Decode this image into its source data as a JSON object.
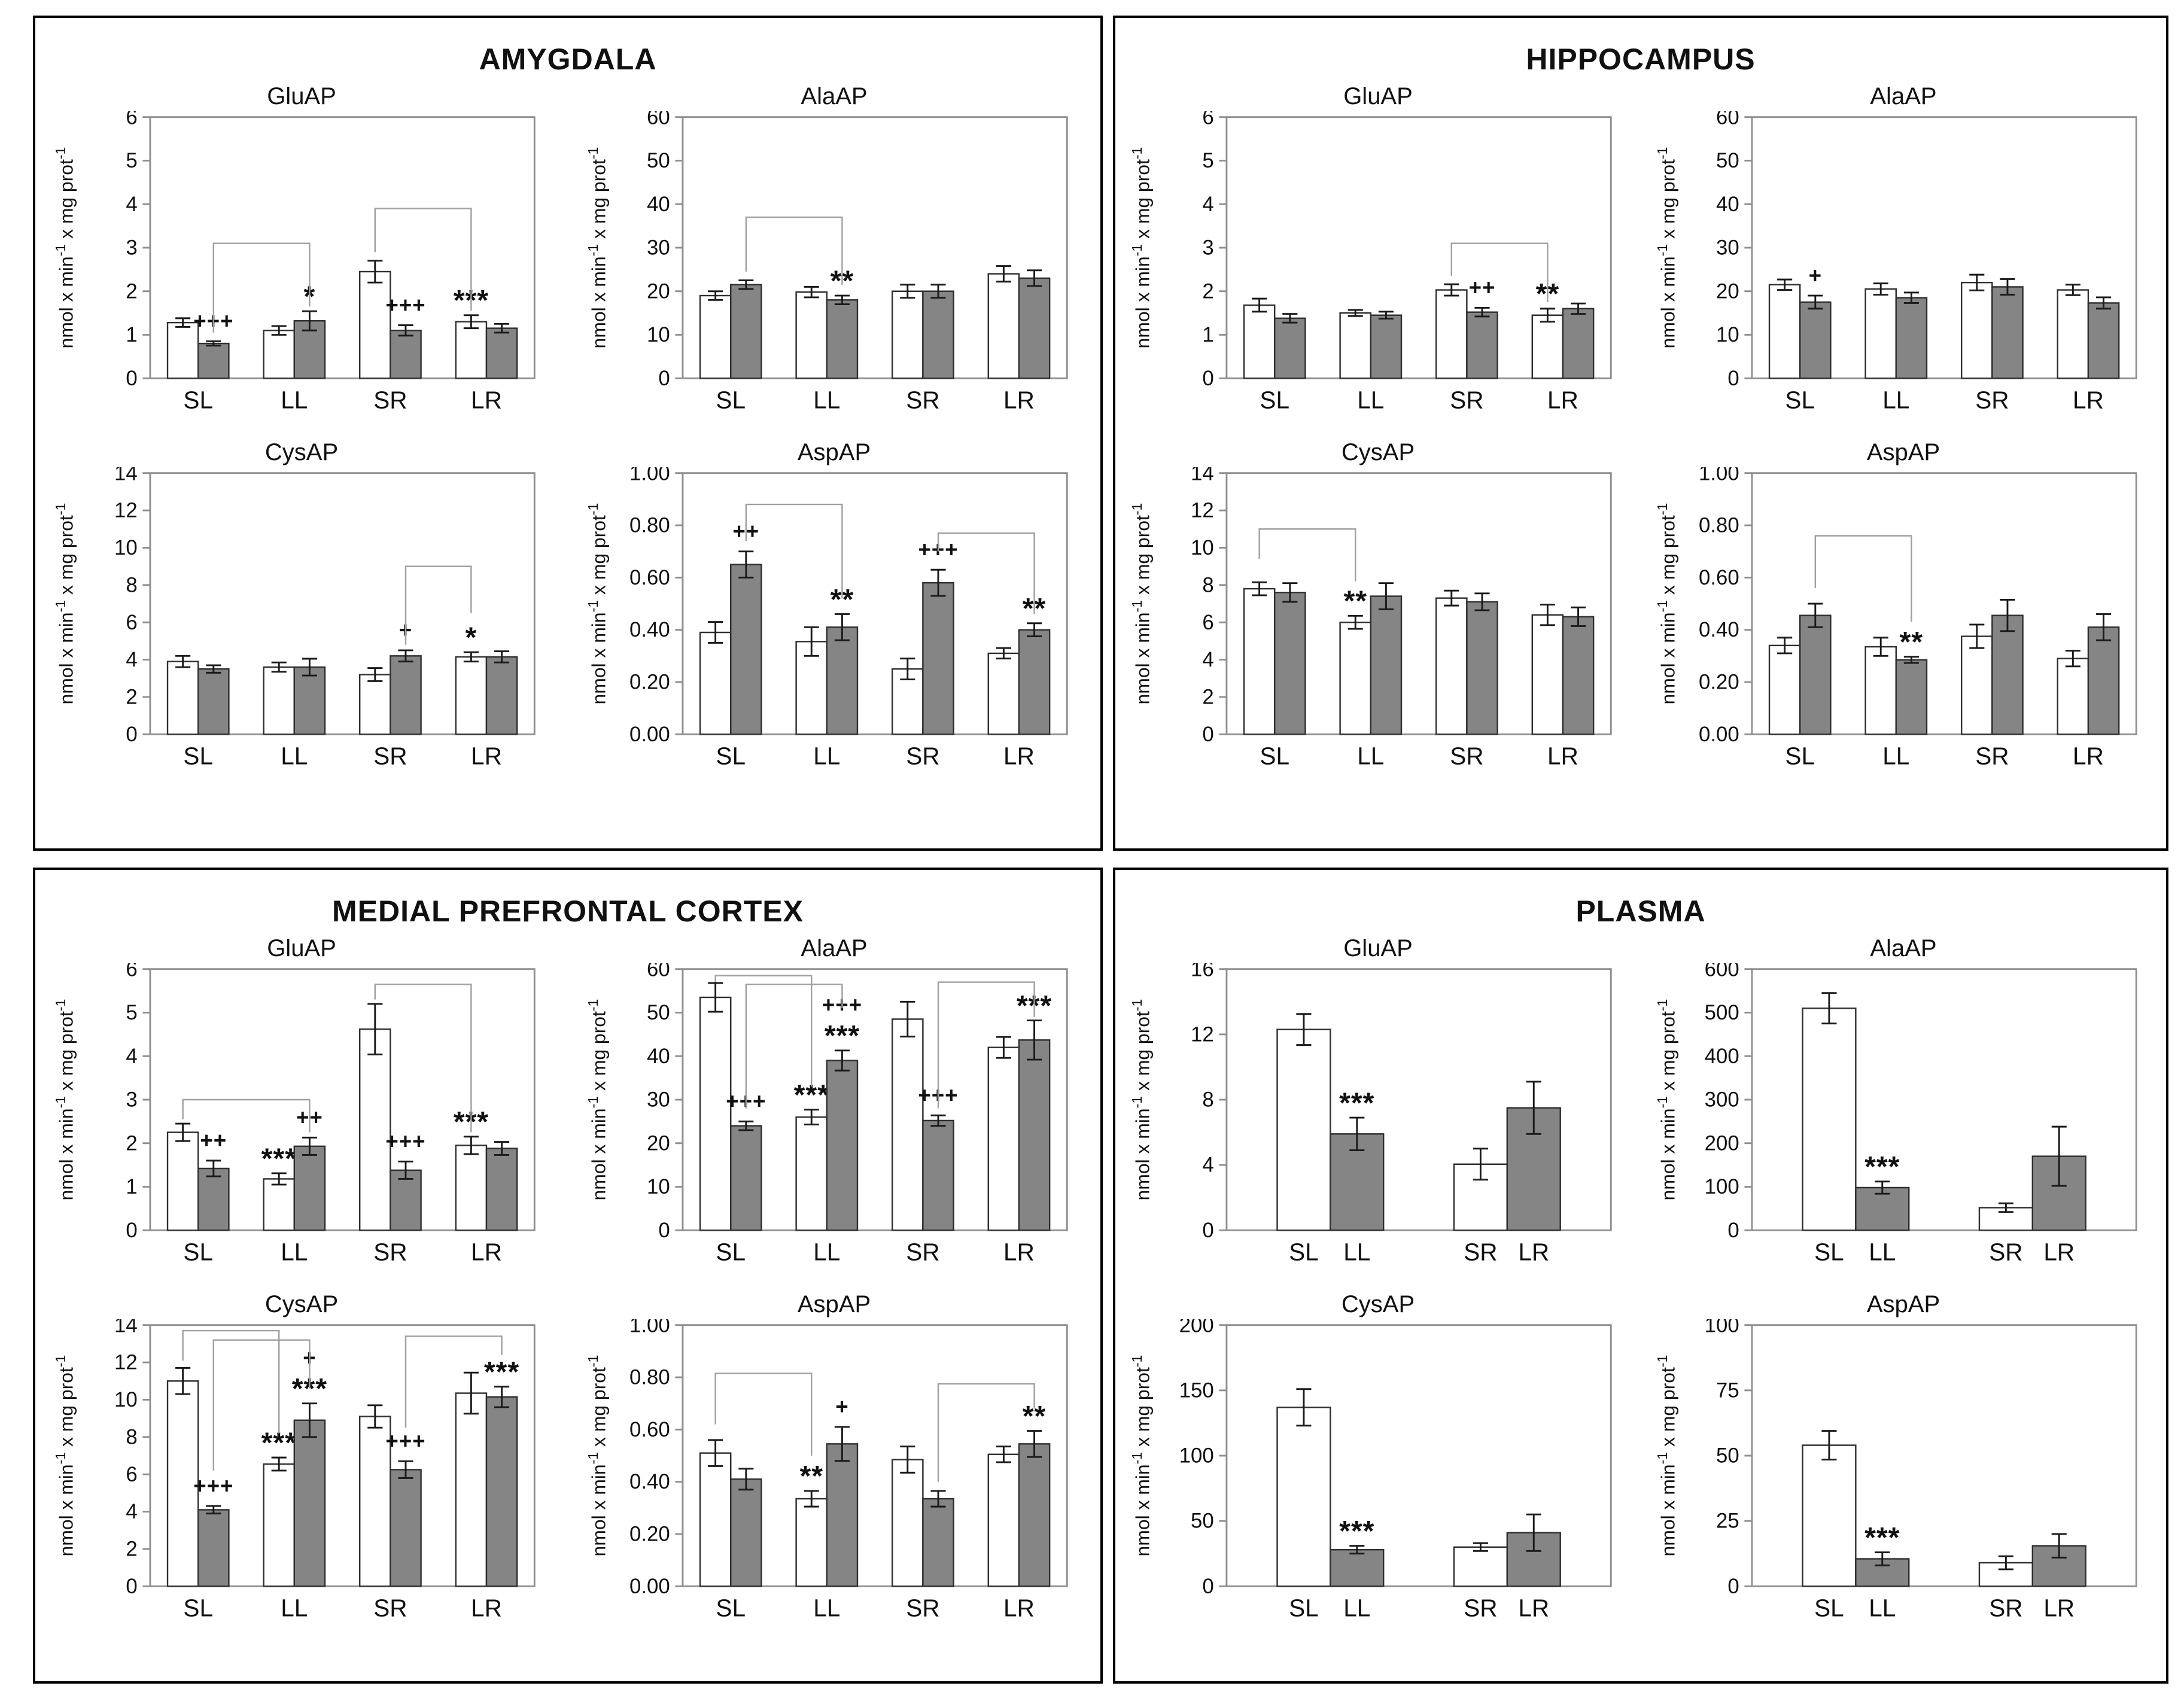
{
  "figure": {
    "ylabel": "nmol x min-1 x mg prot-1",
    "colors": {
      "white_bar": "#ffffff",
      "gray_bar": "#858585",
      "bar_border": "#2f2f2f",
      "frame": "#8f8f8f",
      "error_bar": "#1a1a1a",
      "bracket": "#a0a0a0",
      "panel_border": "#000000"
    },
    "panels": [
      {
        "title": "AMYGDALA"
      },
      {
        "title": "HIPPOCAMPUS"
      },
      {
        "title": "MEDIAL PREFRONTAL CORTEX"
      },
      {
        "title": "PLASMA"
      }
    ]
  },
  "chart_data": [
    {
      "panel": "AMYGDALA",
      "title": "GluAP",
      "type": "bar",
      "grouping": "grouped",
      "ylabel": "nmol x min-1 x mg prot-1",
      "categories": [
        "SL",
        "LL",
        "SR",
        "LR"
      ],
      "ylim": [
        0,
        6
      ],
      "ystep": 1,
      "grid": false,
      "legend": "none",
      "series": [
        {
          "name": "white",
          "fill": "white",
          "values": [
            1.28,
            1.1,
            2.45,
            1.3
          ],
          "errors": [
            0.1,
            0.1,
            0.25,
            0.15
          ],
          "sig": [
            "",
            "",
            "",
            "***"
          ]
        },
        {
          "name": "gray",
          "fill": "gray",
          "values": [
            0.8,
            1.32,
            1.1,
            1.15
          ],
          "errors": [
            0.05,
            0.22,
            0.12,
            0.1
          ],
          "sig": [
            "+++",
            "*",
            "+++",
            ""
          ]
        }
      ],
      "brackets": [
        {
          "a": "0g",
          "b": "1g",
          "y": 3.1,
          "da": 1.05,
          "db": 1.65
        },
        {
          "a": "2w",
          "b": "3w",
          "y": 3.9,
          "da": 2.9,
          "db": 1.55
        }
      ]
    },
    {
      "panel": "AMYGDALA",
      "title": "AlaAP",
      "type": "bar",
      "grouping": "grouped",
      "ylabel": "nmol x min-1 x mg prot-1",
      "categories": [
        "SL",
        "LL",
        "SR",
        "LR"
      ],
      "ylim": [
        0,
        60
      ],
      "ystep": 10,
      "grid": false,
      "legend": "none",
      "series": [
        {
          "name": "white",
          "fill": "white",
          "values": [
            19,
            19.8,
            20,
            24
          ],
          "errors": [
            1,
            1.2,
            1.5,
            1.8
          ],
          "sig": [
            "",
            "",
            "",
            ""
          ]
        },
        {
          "name": "gray",
          "fill": "gray",
          "values": [
            21.5,
            18,
            20,
            23
          ],
          "errors": [
            1,
            1,
            1.5,
            1.8
          ],
          "sig": [
            "",
            "**",
            "",
            ""
          ]
        }
      ],
      "brackets": [
        {
          "a": "0g",
          "b": "1g",
          "y": 37,
          "da": 24.5,
          "db": 21.5
        }
      ]
    },
    {
      "panel": "AMYGDALA",
      "title": "CysAP",
      "type": "bar",
      "grouping": "grouped",
      "ylabel": "nmol x min-1 x mg prot-1",
      "categories": [
        "SL",
        "LL",
        "SR",
        "LR"
      ],
      "ylim": [
        0,
        14
      ],
      "ystep": 2,
      "grid": false,
      "legend": "none",
      "series": [
        {
          "name": "white",
          "fill": "white",
          "values": [
            3.9,
            3.6,
            3.2,
            4.15
          ],
          "errors": [
            0.3,
            0.25,
            0.35,
            0.25
          ],
          "sig": [
            "",
            "",
            "",
            "*"
          ]
        },
        {
          "name": "gray",
          "fill": "gray",
          "values": [
            3.5,
            3.6,
            4.2,
            4.15
          ],
          "errors": [
            0.2,
            0.45,
            0.3,
            0.3
          ],
          "sig": [
            "",
            "",
            "+",
            ""
          ]
        }
      ],
      "brackets": [
        {
          "a": "2g",
          "b": "3w",
          "y": 9,
          "da": 4.8,
          "db": 6.5
        }
      ]
    },
    {
      "panel": "AMYGDALA",
      "title": "AspAP",
      "type": "bar",
      "grouping": "grouped",
      "ylabel": "nmol x min-1 x mg prot-1",
      "categories": [
        "SL",
        "LL",
        "SR",
        "LR"
      ],
      "ylim": [
        0,
        1
      ],
      "ystep": 0.2,
      "grid": false,
      "legend": "none",
      "series": [
        {
          "name": "white",
          "fill": "white",
          "values": [
            0.39,
            0.355,
            0.25,
            0.31
          ],
          "errors": [
            0.04,
            0.055,
            0.04,
            0.02
          ],
          "sig": [
            "",
            "",
            "",
            ""
          ]
        },
        {
          "name": "gray",
          "fill": "gray",
          "values": [
            0.65,
            0.41,
            0.58,
            0.4
          ],
          "errors": [
            0.05,
            0.05,
            0.05,
            0.025
          ],
          "sig": [
            "++",
            "**",
            "+++",
            "**"
          ]
        }
      ],
      "brackets": [
        {
          "a": "0g",
          "b": "1g",
          "y": 0.88,
          "da": 0.74,
          "db": 0.52
        },
        {
          "a": "2g",
          "b": "3g",
          "y": 0.77,
          "da": 0.7,
          "db": 0.46
        }
      ]
    },
    {
      "panel": "HIPPOCAMPUS",
      "title": "GluAP",
      "type": "bar",
      "grouping": "grouped",
      "ylabel": "nmol x min-1 x mg prot-1",
      "categories": [
        "SL",
        "LL",
        "SR",
        "LR"
      ],
      "ylim": [
        0,
        6
      ],
      "ystep": 1,
      "grid": false,
      "legend": "none",
      "series": [
        {
          "name": "white",
          "fill": "white",
          "values": [
            1.68,
            1.5,
            2.03,
            1.45
          ],
          "errors": [
            0.15,
            0.07,
            0.13,
            0.15
          ],
          "sig": [
            "",
            "",
            "",
            "**"
          ]
        },
        {
          "name": "gray",
          "fill": "gray",
          "values": [
            1.38,
            1.45,
            1.52,
            1.6
          ],
          "errors": [
            0.1,
            0.08,
            0.1,
            0.12
          ],
          "sig": [
            "",
            "",
            "++",
            ""
          ]
        }
      ],
      "brackets": [
        {
          "a": "2w",
          "b": "3w",
          "y": 3.1,
          "da": 2.35,
          "db": 1.75
        }
      ]
    },
    {
      "panel": "HIPPOCAMPUS",
      "title": "AlaAP",
      "type": "bar",
      "grouping": "grouped",
      "ylabel": "nmol x min-1 x mg prot-1",
      "categories": [
        "SL",
        "LL",
        "SR",
        "LR"
      ],
      "ylim": [
        0,
        60
      ],
      "ystep": 10,
      "grid": false,
      "legend": "none",
      "series": [
        {
          "name": "white",
          "fill": "white",
          "values": [
            21.5,
            20.5,
            22,
            20.3
          ],
          "errors": [
            1.2,
            1.3,
            1.8,
            1.2
          ],
          "sig": [
            "",
            "",
            "",
            ""
          ]
        },
        {
          "name": "gray",
          "fill": "gray",
          "values": [
            17.5,
            18.5,
            21,
            17.3
          ],
          "errors": [
            1.5,
            1.2,
            1.8,
            1.3
          ],
          "sig": [
            "+",
            "",
            "",
            ""
          ]
        }
      ],
      "brackets": []
    },
    {
      "panel": "HIPPOCAMPUS",
      "title": "CysAP",
      "type": "bar",
      "grouping": "grouped",
      "ylabel": "nmol x min-1 x mg prot-1",
      "categories": [
        "SL",
        "LL",
        "SR",
        "LR"
      ],
      "ylim": [
        0,
        14
      ],
      "ystep": 2,
      "grid": false,
      "legend": "none",
      "series": [
        {
          "name": "white",
          "fill": "white",
          "values": [
            7.8,
            6.0,
            7.3,
            6.4
          ],
          "errors": [
            0.35,
            0.35,
            0.4,
            0.55
          ],
          "sig": [
            "",
            "**",
            "",
            ""
          ]
        },
        {
          "name": "gray",
          "fill": "gray",
          "values": [
            7.6,
            7.4,
            7.1,
            6.3
          ],
          "errors": [
            0.5,
            0.7,
            0.45,
            0.5
          ],
          "sig": [
            "",
            "",
            "",
            ""
          ]
        }
      ],
      "brackets": [
        {
          "a": "0w",
          "b": "1w",
          "y": 11,
          "da": 9.4,
          "db": 8.2
        }
      ]
    },
    {
      "panel": "HIPPOCAMPUS",
      "title": "AspAP",
      "type": "bar",
      "grouping": "grouped",
      "ylabel": "nmol x min-1 x mg prot-1",
      "categories": [
        "SL",
        "LL",
        "SR",
        "LR"
      ],
      "ylim": [
        0,
        1
      ],
      "ystep": 0.2,
      "grid": false,
      "legend": "none",
      "series": [
        {
          "name": "white",
          "fill": "white",
          "values": [
            0.34,
            0.335,
            0.375,
            0.29
          ],
          "errors": [
            0.03,
            0.035,
            0.045,
            0.03
          ],
          "sig": [
            "",
            "",
            "",
            ""
          ]
        },
        {
          "name": "gray",
          "fill": "gray",
          "values": [
            0.455,
            0.285,
            0.455,
            0.41
          ],
          "errors": [
            0.045,
            0.012,
            0.06,
            0.05
          ],
          "sig": [
            "",
            "**",
            "",
            ""
          ]
        }
      ],
      "brackets": [
        {
          "a": "0g",
          "b": "1g",
          "y": 0.76,
          "da": 0.56,
          "db": 0.43
        }
      ]
    },
    {
      "panel": "MEDIAL PREFRONTAL CORTEX",
      "title": "GluAP",
      "type": "bar",
      "grouping": "grouped",
      "ylabel": "nmol x min-1 x mg prot-1",
      "categories": [
        "SL",
        "LL",
        "SR",
        "LR"
      ],
      "ylim": [
        0,
        6
      ],
      "ystep": 1,
      "grid": false,
      "legend": "none",
      "series": [
        {
          "name": "white",
          "fill": "white",
          "values": [
            2.25,
            1.18,
            4.62,
            1.95
          ],
          "errors": [
            0.2,
            0.13,
            0.58,
            0.2
          ],
          "sig": [
            "",
            "***",
            "",
            "***"
          ]
        },
        {
          "name": "gray",
          "fill": "gray",
          "values": [
            1.42,
            1.93,
            1.38,
            1.88
          ],
          "errors": [
            0.18,
            0.2,
            0.2,
            0.15
          ],
          "sig": [
            "++",
            "++",
            "+++",
            ""
          ]
        }
      ],
      "brackets": [
        {
          "a": "0w",
          "b": "1g",
          "y": 3.0,
          "da": 2.55,
          "db": 2.25
        },
        {
          "a": "2w",
          "b": "3w",
          "y": 5.65,
          "da": 5.3,
          "db": 2.25
        }
      ]
    },
    {
      "panel": "MEDIAL PREFRONTAL CORTEX",
      "title": "AlaAP",
      "type": "bar",
      "grouping": "grouped",
      "ylabel": "nmol x min-1 x mg prot-1",
      "categories": [
        "SL",
        "LL",
        "SR",
        "LR"
      ],
      "ylim": [
        0,
        60
      ],
      "ystep": 10,
      "grid": false,
      "legend": "none",
      "series": [
        {
          "name": "white",
          "fill": "white",
          "values": [
            53.5,
            26,
            48.5,
            42
          ],
          "errors": [
            3.3,
            1.7,
            4,
            2.4
          ],
          "sig": [
            "",
            "***",
            "",
            ""
          ]
        },
        {
          "name": "gray",
          "fill": "gray",
          "values": [
            24,
            39,
            25.2,
            43.7
          ],
          "errors": [
            1,
            2.3,
            1.2,
            4.5
          ],
          "sig": [
            "+++",
            "+++\n***",
            "+++",
            "***"
          ]
        }
      ],
      "brackets": [
        {
          "a": "0w",
          "b": "1w",
          "y": 58.5,
          "da": 57,
          "db": 33
        },
        {
          "a": "0g",
          "b": "1g",
          "y": 56.5,
          "da": 28,
          "db": 51
        },
        {
          "a": "2g",
          "b": "3g",
          "y": 57,
          "da": 28,
          "db": 49
        }
      ]
    },
    {
      "panel": "MEDIAL PREFRONTAL CORTEX",
      "title": "CysAP",
      "type": "bar",
      "grouping": "grouped",
      "ylabel": "nmol x min-1 x mg prot-1",
      "categories": [
        "SL",
        "LL",
        "SR",
        "LR"
      ],
      "ylim": [
        0,
        14
      ],
      "ystep": 2,
      "grid": false,
      "legend": "none",
      "series": [
        {
          "name": "white",
          "fill": "white",
          "values": [
            11.0,
            6.55,
            9.1,
            10.35
          ],
          "errors": [
            0.7,
            0.35,
            0.6,
            1.1
          ],
          "sig": [
            "",
            "***",
            "",
            ""
          ]
        },
        {
          "name": "gray",
          "fill": "gray",
          "values": [
            4.1,
            8.9,
            6.25,
            10.15
          ],
          "errors": [
            0.2,
            0.9,
            0.45,
            0.55
          ],
          "sig": [
            "+++",
            "+\n***",
            "+++",
            "***"
          ]
        }
      ],
      "brackets": [
        {
          "a": "0w",
          "b": "1w",
          "y": 13.7,
          "da": 12.1,
          "db": 8.2
        },
        {
          "a": "0g",
          "b": "1g",
          "y": 13.2,
          "da": 6.2,
          "db": 10.6
        },
        {
          "a": "2g",
          "b": "3g",
          "y": 13.4,
          "da": 8.5,
          "db": 12.4
        }
      ]
    },
    {
      "panel": "MEDIAL PREFRONTAL CORTEX",
      "title": "AspAP",
      "type": "bar",
      "grouping": "grouped",
      "ylabel": "nmol x min-1 x mg prot-1",
      "categories": [
        "SL",
        "LL",
        "SR",
        "LR"
      ],
      "ylim": [
        0,
        1
      ],
      "ystep": 0.2,
      "grid": false,
      "legend": "none",
      "series": [
        {
          "name": "white",
          "fill": "white",
          "values": [
            0.51,
            0.335,
            0.485,
            0.505
          ],
          "errors": [
            0.05,
            0.03,
            0.05,
            0.03
          ],
          "sig": [
            "",
            "**",
            "",
            ""
          ]
        },
        {
          "name": "gray",
          "fill": "gray",
          "values": [
            0.41,
            0.545,
            0.335,
            0.545
          ],
          "errors": [
            0.04,
            0.065,
            0.03,
            0.05
          ],
          "sig": [
            "",
            "+",
            "",
            "**"
          ]
        }
      ],
      "brackets": [
        {
          "a": "0w",
          "b": "1w",
          "y": 0.815,
          "da": 0.62,
          "db": 0.5
        },
        {
          "a": "2g",
          "b": "3g",
          "y": 0.775,
          "da": 0.4,
          "db": 0.68
        }
      ]
    },
    {
      "panel": "PLASMA",
      "title": "GluAP",
      "type": "bar",
      "grouping": "pairs",
      "ylabel": "nmol x min-1 x mg prot-1",
      "categories": [
        "SL",
        "LL",
        "SR",
        "LR"
      ],
      "fills": [
        "white",
        "gray",
        "white",
        "gray"
      ],
      "values": [
        12.3,
        5.9,
        4.05,
        7.5
      ],
      "errors": [
        0.95,
        1.0,
        0.95,
        1.6
      ],
      "sig": [
        "",
        "***",
        "",
        ""
      ],
      "ylim": [
        0,
        16
      ],
      "ystep": 4,
      "grid": false,
      "legend": "none",
      "brackets": []
    },
    {
      "panel": "PLASMA",
      "title": "AlaAP",
      "type": "bar",
      "grouping": "pairs",
      "ylabel": "nmol x min-1 x mg prot-1",
      "categories": [
        "SL",
        "LL",
        "SR",
        "LR"
      ],
      "fills": [
        "white",
        "gray",
        "white",
        "gray"
      ],
      "values": [
        510,
        98,
        52,
        170
      ],
      "errors": [
        35,
        14,
        10,
        68
      ],
      "sig": [
        "",
        "***",
        "",
        ""
      ],
      "ylim": [
        0,
        600
      ],
      "ystep": 100,
      "grid": false,
      "legend": "none",
      "brackets": []
    },
    {
      "panel": "PLASMA",
      "title": "CysAP",
      "type": "bar",
      "grouping": "pairs",
      "ylabel": "nmol x min-1 x mg prot-1",
      "categories": [
        "SL",
        "LL",
        "SR",
        "LR"
      ],
      "fills": [
        "white",
        "gray",
        "white",
        "gray"
      ],
      "values": [
        137,
        28,
        30,
        41
      ],
      "errors": [
        14,
        3,
        3,
        14
      ],
      "sig": [
        "",
        "***",
        "",
        ""
      ],
      "ylim": [
        0,
        200
      ],
      "ystep": 50,
      "grid": false,
      "legend": "none",
      "brackets": []
    },
    {
      "panel": "PLASMA",
      "title": "AspAP",
      "type": "bar",
      "grouping": "pairs",
      "ylabel": "nmol x min-1 x mg prot-1",
      "categories": [
        "SL",
        "LL",
        "SR",
        "LR"
      ],
      "fills": [
        "white",
        "gray",
        "white",
        "gray"
      ],
      "values": [
        54,
        10.5,
        9,
        15.5
      ],
      "errors": [
        5.5,
        2.5,
        2.5,
        4.5
      ],
      "sig": [
        "",
        "***",
        "",
        ""
      ],
      "ylim": [
        0,
        100
      ],
      "ystep": 25,
      "grid": false,
      "legend": "none",
      "brackets": []
    }
  ]
}
